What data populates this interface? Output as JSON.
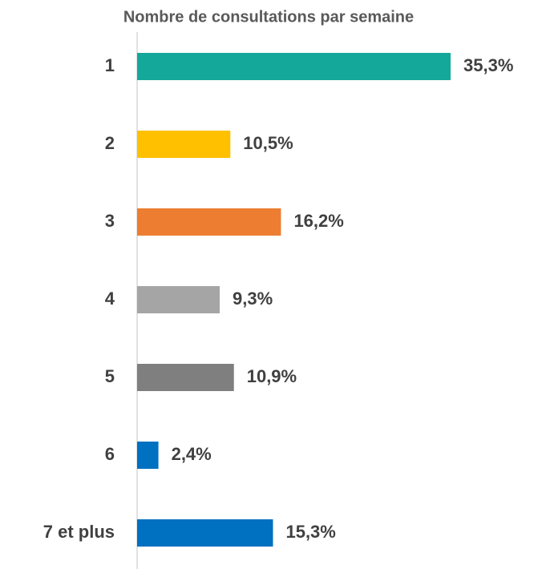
{
  "chart_data": {
    "type": "barh",
    "title": "Nombre de consultations par semaine",
    "categories": [
      "1",
      "2",
      "3",
      "4",
      "5",
      "6",
      "7 et plus"
    ],
    "values": [
      35.3,
      10.5,
      16.2,
      9.3,
      10.9,
      2.4,
      15.3
    ],
    "value_labels": [
      "35,3%",
      "10,5%",
      "16,2%",
      "9,3%",
      "10,9%",
      "2,4%",
      "15,3%"
    ],
    "colors": [
      "#14a89b",
      "#ffc000",
      "#ed7d31",
      "#a5a5a5",
      "#7f7f7f",
      "#0070c0",
      "#0070c0"
    ]
  }
}
